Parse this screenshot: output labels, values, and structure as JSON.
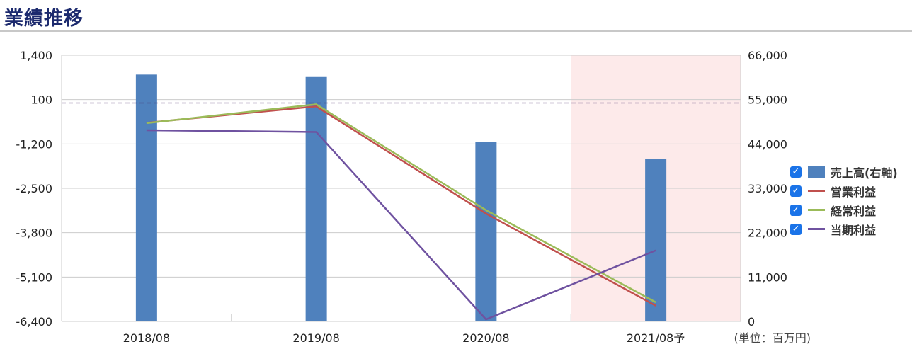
{
  "header": {
    "title": "業績推移"
  },
  "chart_data": {
    "type": "bar+line",
    "categories": [
      "2018/08",
      "2019/08",
      "2020/08",
      "2021/08予"
    ],
    "forecast_index": 3,
    "forecast_shade_color": "#fdeaea",
    "left_axis": {
      "ticks": [
        "1,400",
        "100",
        "-1,200",
        "-2,500",
        "-3,800",
        "-5,100",
        "-6,400"
      ],
      "range": [
        -6400,
        1400
      ]
    },
    "right_axis": {
      "ticks": [
        "66,000",
        "55,000",
        "44,000",
        "33,000",
        "22,000",
        "11,000",
        "0"
      ],
      "range": [
        0,
        66000
      ]
    },
    "reference_line": {
      "axis": "left",
      "value": 0,
      "style": "dashed",
      "color": "#4a2d6e"
    },
    "unit_label": "(単位：百万円)",
    "grid": true,
    "legend_position": "right",
    "series": [
      {
        "name": "売上高(右軸)",
        "type": "bar",
        "axis": "right",
        "color": "#4f81bd",
        "checked": true,
        "values": [
          61200,
          60600,
          44500,
          40300
        ]
      },
      {
        "name": "営業利益",
        "type": "line",
        "axis": "left",
        "color": "#c0504d",
        "checked": true,
        "values": [
          -580,
          -100,
          -3240,
          -5940
        ]
      },
      {
        "name": "経常利益",
        "type": "line",
        "axis": "left",
        "color": "#9bbb59",
        "checked": true,
        "values": [
          -590,
          -40,
          -3140,
          -5840
        ]
      },
      {
        "name": "当期利益",
        "type": "line",
        "axis": "left",
        "color": "#6f52a0",
        "checked": true,
        "values": [
          -800,
          -850,
          -6340,
          -4320
        ]
      }
    ]
  }
}
